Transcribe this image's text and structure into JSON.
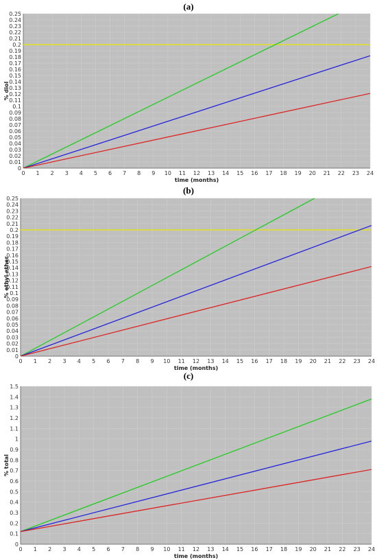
{
  "chart_data": [
    {
      "panel": "(a)",
      "type": "line",
      "xlabel": "time (months)",
      "ylabel": "% diol",
      "xlim": [
        0,
        24
      ],
      "ylim": [
        0,
        0.25
      ],
      "xticks": [
        0,
        1,
        2,
        3,
        4,
        5,
        6,
        7,
        8,
        9,
        10,
        11,
        12,
        13,
        14,
        15,
        16,
        17,
        18,
        19,
        20,
        21,
        22,
        23,
        24
      ],
      "yticks": [
        0,
        0.01,
        0.02,
        0.03,
        0.04,
        0.05,
        0.06,
        0.07,
        0.08,
        0.09,
        0.1,
        0.11,
        0.12,
        0.13,
        0.14,
        0.15,
        0.16,
        0.17,
        0.18,
        0.19,
        0.2,
        0.21,
        0.22,
        0.23,
        0.24,
        0.25
      ],
      "grid": true,
      "threshold": {
        "y": 0.2,
        "color": "#e6e600"
      },
      "series": [
        {
          "color": "#22cc22",
          "x": [
            0,
            21.8
          ],
          "y": [
            0,
            0.25
          ]
        },
        {
          "color": "#2222dd",
          "x": [
            0,
            24
          ],
          "y": [
            0,
            0.182
          ]
        },
        {
          "color": "#dd2222",
          "x": [
            0,
            24
          ],
          "y": [
            0,
            0.121
          ]
        }
      ]
    },
    {
      "panel": "(b)",
      "type": "line",
      "xlabel": "time (months)",
      "ylabel": "% ethyl ether",
      "xlim": [
        0,
        24
      ],
      "ylim": [
        0,
        0.25
      ],
      "xticks": [
        0,
        1,
        2,
        3,
        4,
        5,
        6,
        7,
        8,
        9,
        10,
        11,
        12,
        13,
        14,
        15,
        16,
        17,
        18,
        19,
        20,
        21,
        22,
        23,
        24
      ],
      "yticks": [
        0,
        0.01,
        0.02,
        0.03,
        0.04,
        0.05,
        0.06,
        0.07,
        0.08,
        0.09,
        0.1,
        0.11,
        0.12,
        0.13,
        0.14,
        0.15,
        0.16,
        0.17,
        0.18,
        0.19,
        0.2,
        0.21,
        0.22,
        0.23,
        0.24,
        0.25
      ],
      "grid": true,
      "threshold": {
        "y": 0.2,
        "color": "#e6e600"
      },
      "series": [
        {
          "color": "#22cc22",
          "x": [
            0,
            20.1
          ],
          "y": [
            0,
            0.25
          ]
        },
        {
          "color": "#2222dd",
          "x": [
            0,
            24
          ],
          "y": [
            0,
            0.207
          ]
        },
        {
          "color": "#dd2222",
          "x": [
            0,
            24
          ],
          "y": [
            0,
            0.142
          ]
        }
      ]
    },
    {
      "panel": "(c)",
      "type": "line",
      "xlabel": "time (months)",
      "ylabel": "% total",
      "xlim": [
        0,
        24
      ],
      "ylim": [
        0,
        1.5
      ],
      "xticks": [
        0,
        1,
        2,
        3,
        4,
        5,
        6,
        7,
        8,
        9,
        10,
        11,
        12,
        13,
        14,
        15,
        16,
        17,
        18,
        19,
        20,
        21,
        22,
        23,
        24
      ],
      "yticks": [
        0,
        0.1,
        0.2,
        0.3,
        0.4,
        0.5,
        0.6,
        0.7,
        0.8,
        0.9,
        1,
        1.1,
        1.2,
        1.3,
        1.4,
        1.5
      ],
      "grid": true,
      "series": [
        {
          "color": "#22cc22",
          "x": [
            0,
            24
          ],
          "y": [
            0.12,
            1.38
          ]
        },
        {
          "color": "#2222dd",
          "x": [
            0,
            24
          ],
          "y": [
            0.12,
            0.98
          ]
        },
        {
          "color": "#dd2222",
          "x": [
            0,
            24
          ],
          "y": [
            0.12,
            0.71
          ]
        }
      ]
    }
  ]
}
